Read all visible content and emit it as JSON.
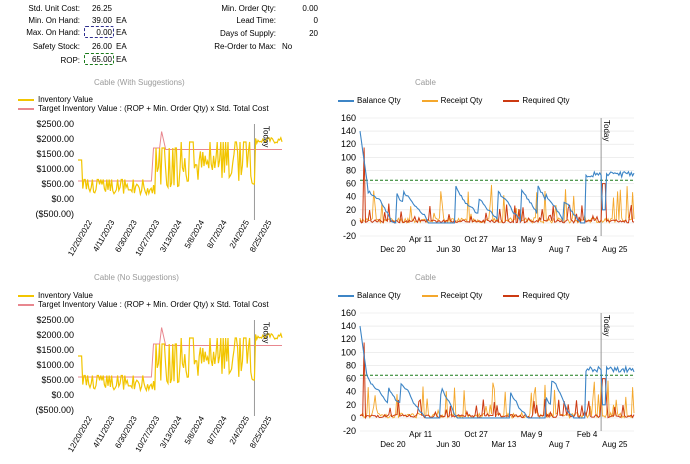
{
  "summary": {
    "left": [
      {
        "label": "Std. Unit Cost:",
        "value": "26.25",
        "unit": ""
      },
      {
        "label": "Min. On Hand:",
        "value": "39.00",
        "unit": "EA"
      },
      {
        "label": "Max. On Hand:",
        "value": "0.00",
        "unit": "EA"
      },
      {
        "label": "Safety Stock:",
        "value": "26.00",
        "unit": "EA"
      },
      {
        "label": "ROP:",
        "value": "65.00",
        "unit": "EA"
      }
    ],
    "right": [
      {
        "label": "Min. Order Qty:",
        "value": "0.00"
      },
      {
        "label": "Lead Time:",
        "value": "0"
      },
      {
        "label": "Days of Supply:",
        "value": "20"
      },
      {
        "label": "Re-Order to Max:",
        "value": "No"
      }
    ]
  },
  "colors": {
    "inventory": "#f2c500",
    "target": "#e8878f",
    "balance": "#3d85c6",
    "receipt": "#f4a72c",
    "required": "#cc3a12",
    "rop": "#1a7a1a",
    "max_box": "#2f2f8f",
    "rop_box": "#1a7a1a"
  },
  "charts": {
    "top_left_title": "Cable (With Suggestions)",
    "bottom_left_title": "Cable (No Suggestions)",
    "top_right_title": "Cable",
    "bottom_right_title": "Cable",
    "inv_legend": [
      "Inventory Value",
      "Target Inventory Value : (ROP + Min. Order Qty) x Std. Total Cost"
    ],
    "qty_legend": [
      "Balance Qty",
      "Receipt Qty",
      "Required Qty"
    ],
    "today_label": "Today"
  },
  "chart_data": [
    {
      "type": "line",
      "title": "Cable (With Suggestions)",
      "series": [
        {
          "name": "Inventory Value",
          "color": "#f2c500"
        },
        {
          "name": "Target Inventory Value : (ROP + Min. Order Qty) x Std. Total Cost",
          "color": "#e8878f"
        }
      ],
      "x_ticks": [
        "12/20/2022",
        "4/11/2023",
        "6/30/2023",
        "10/27/2023",
        "3/13/2024",
        "5/8/2024",
        "8/7/2024",
        "2/4/2025",
        "8/25/2025"
      ],
      "y_ticks": [
        "($500.00)",
        "$0.00",
        "$500.00",
        "$1000.00",
        "$1500.00",
        "$2000.00",
        "$2500.00"
      ],
      "ylim": [
        -500,
        2500
      ],
      "target_steps": [
        [
          0,
          600
        ],
        [
          0.36,
          600
        ],
        [
          0.37,
          1700
        ],
        [
          0.4,
          1700
        ],
        [
          0.41,
          2250
        ],
        [
          0.43,
          1650
        ],
        [
          1,
          1650
        ]
      ]
    },
    {
      "type": "line",
      "title": "Cable",
      "series": [
        {
          "name": "Balance Qty",
          "color": "#3d85c6"
        },
        {
          "name": "Receipt Qty",
          "color": "#f4a72c"
        },
        {
          "name": "Required Qty",
          "color": "#cc3a12"
        }
      ],
      "x_ticks": [
        "Dec 20",
        "Apr 11",
        "Jun 30",
        "Oct 27",
        "Mar 13",
        "May 9",
        "Aug 7",
        "Feb 4",
        "Aug 25"
      ],
      "y_ticks": [
        "-20",
        "0",
        "20",
        "40",
        "60",
        "80",
        "100",
        "120",
        "140",
        "160"
      ],
      "ylim": [
        -20,
        160
      ],
      "rop_line": 65
    },
    {
      "type": "line",
      "title": "Cable (No Suggestions)",
      "series": [
        {
          "name": "Inventory Value",
          "color": "#f2c500"
        },
        {
          "name": "Target Inventory Value : (ROP + Min. Order Qty) x Std. Total Cost",
          "color": "#e8878f"
        }
      ],
      "x_ticks": [
        "12/20/2022",
        "4/11/2023",
        "6/30/2023",
        "10/27/2023",
        "3/13/2024",
        "5/8/2024",
        "8/7/2024",
        "2/4/2025",
        "8/25/2025"
      ],
      "y_ticks": [
        "($500.00)",
        "$0.00",
        "$500.00",
        "$1000.00",
        "$1500.00",
        "$2000.00",
        "$2500.00"
      ],
      "ylim": [
        -500,
        2500
      ],
      "target_steps": [
        [
          0,
          600
        ],
        [
          0.36,
          600
        ],
        [
          0.37,
          1700
        ],
        [
          0.4,
          1700
        ],
        [
          0.41,
          2250
        ],
        [
          0.43,
          1650
        ],
        [
          1,
          1650
        ]
      ]
    },
    {
      "type": "line",
      "title": "Cable",
      "series": [
        {
          "name": "Balance Qty",
          "color": "#3d85c6"
        },
        {
          "name": "Receipt Qty",
          "color": "#f4a72c"
        },
        {
          "name": "Required Qty",
          "color": "#cc3a12"
        }
      ],
      "x_ticks": [
        "Dec 20",
        "Apr 11",
        "Jun 30",
        "Oct 27",
        "Mar 13",
        "May 9",
        "Aug 7",
        "Feb 4",
        "Aug 25"
      ],
      "y_ticks": [
        "-20",
        "0",
        "20",
        "40",
        "60",
        "80",
        "100",
        "120",
        "140",
        "160"
      ],
      "ylim": [
        -20,
        160
      ],
      "rop_line": 65
    }
  ]
}
